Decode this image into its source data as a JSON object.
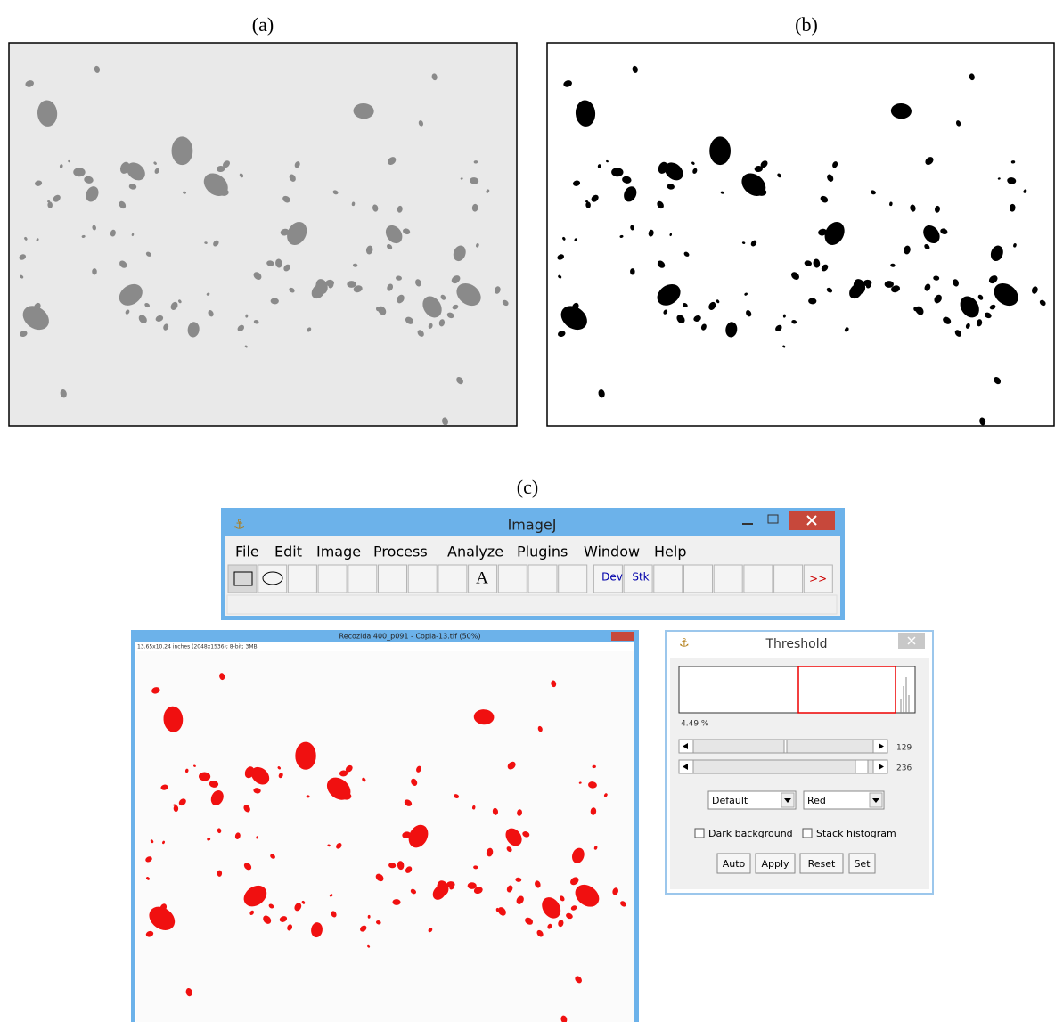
{
  "panels": {
    "a": {
      "label": "(a)"
    },
    "b": {
      "label": "(b)"
    },
    "c": {
      "label": "(c)"
    }
  },
  "imagej": {
    "title": "ImageJ",
    "menu": [
      "File",
      "Edit",
      "Image",
      "Process",
      "Analyze",
      "Plugins",
      "Window",
      "Help"
    ],
    "tools": [
      "A",
      "Dev",
      "Stk",
      ">>"
    ]
  },
  "image_window": {
    "title": "Recozida 400_p091 - Copia-13.tif (50%)",
    "info": "13.65x10.24 inches (2048x1536); 8-bit; 3MB"
  },
  "threshold": {
    "title": "Threshold",
    "percent": "4.49 %",
    "min": 129,
    "max": 236,
    "method": "Default",
    "mode": "Red",
    "checkboxes": [
      "Dark background",
      "Stack histogram"
    ],
    "buttons": [
      "Auto",
      "Apply",
      "Reset",
      "Set"
    ]
  }
}
